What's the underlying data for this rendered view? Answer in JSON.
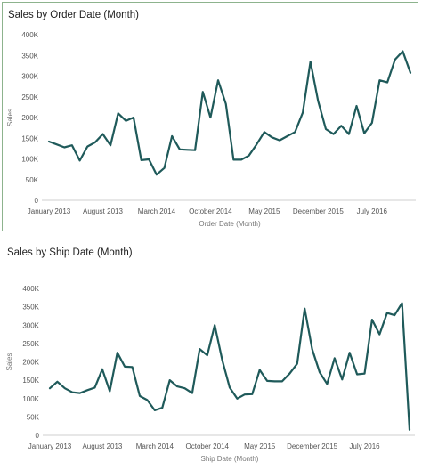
{
  "chart_data": [
    {
      "type": "line",
      "title": "Sales by Order Date (Month)",
      "xlabel": "Order Date (Month)",
      "ylabel": "Sales",
      "ylim": [
        0,
        400000
      ],
      "yticks": [
        "0",
        "50K",
        "100K",
        "150K",
        "200K",
        "250K",
        "300K",
        "350K",
        "400K"
      ],
      "xticks": [
        {
          "label": "January 2013",
          "index": 0
        },
        {
          "label": "August 2013",
          "index": 7
        },
        {
          "label": "March 2014",
          "index": 14
        },
        {
          "label": "October 2014",
          "index": 21
        },
        {
          "label": "May 2015",
          "index": 28
        },
        {
          "label": "December 2015",
          "index": 35
        },
        {
          "label": "July 2016",
          "index": 42
        }
      ],
      "grid": false,
      "color": "#1f5a5a",
      "x": [
        "Jan 2013",
        "Feb 2013",
        "Mar 2013",
        "Apr 2013",
        "May 2013",
        "Jun 2013",
        "Jul 2013",
        "Aug 2013",
        "Sep 2013",
        "Oct 2013",
        "Nov 2013",
        "Dec 2013",
        "Jan 2014",
        "Feb 2014",
        "Mar 2014",
        "Apr 2014",
        "May 2014",
        "Jun 2014",
        "Jul 2014",
        "Aug 2014",
        "Sep 2014",
        "Oct 2014",
        "Nov 2014",
        "Dec 2014",
        "Jan 2015",
        "Feb 2015",
        "Mar 2015",
        "Apr 2015",
        "May 2015",
        "Jun 2015",
        "Jul 2015",
        "Aug 2015",
        "Sep 2015",
        "Oct 2015",
        "Nov 2015",
        "Dec 2015",
        "Jan 2016",
        "Feb 2016",
        "Mar 2016",
        "Apr 2016",
        "May 2016",
        "Jun 2016",
        "Jul 2016",
        "Aug 2016",
        "Sep 2016",
        "Oct 2016",
        "Nov 2016",
        "Dec 2016"
      ],
      "values": [
        142000,
        135000,
        128000,
        133000,
        96000,
        130000,
        140000,
        160000,
        133000,
        210000,
        192000,
        200000,
        97000,
        99000,
        62000,
        78000,
        155000,
        123000,
        122000,
        121000,
        262000,
        200000,
        290000,
        233000,
        98000,
        98000,
        108000,
        135000,
        165000,
        152000,
        145000,
        155000,
        165000,
        212000,
        335000,
        240000,
        172000,
        160000,
        180000,
        160000,
        228000,
        162000,
        187000,
        290000,
        285000,
        340000,
        360000,
        308000
      ]
    },
    {
      "type": "line",
      "title": "Sales by Ship Date (Month)",
      "xlabel": "Ship Date (Month)",
      "ylabel": "Sales",
      "ylim": [
        0,
        400000
      ],
      "yticks": [
        "0",
        "50K",
        "100K",
        "150K",
        "200K",
        "250K",
        "300K",
        "350K",
        "400K"
      ],
      "xticks": [
        {
          "label": "January 2013",
          "index": 0
        },
        {
          "label": "August 2013",
          "index": 7
        },
        {
          "label": "March 2014",
          "index": 14
        },
        {
          "label": "October 2014",
          "index": 21
        },
        {
          "label": "May 2015",
          "index": 28
        },
        {
          "label": "December 2015",
          "index": 35
        },
        {
          "label": "July 2016",
          "index": 42
        }
      ],
      "grid": false,
      "color": "#1f5a5a",
      "x": [
        "Jan 2013",
        "Feb 2013",
        "Mar 2013",
        "Apr 2013",
        "May 2013",
        "Jun 2013",
        "Jul 2013",
        "Aug 2013",
        "Sep 2013",
        "Oct 2013",
        "Nov 2013",
        "Dec 2013",
        "Jan 2014",
        "Feb 2014",
        "Mar 2014",
        "Apr 2014",
        "May 2014",
        "Jun 2014",
        "Jul 2014",
        "Aug 2014",
        "Sep 2014",
        "Oct 2014",
        "Nov 2014",
        "Dec 2014",
        "Jan 2015",
        "Feb 2015",
        "Mar 2015",
        "Apr 2015",
        "May 2015",
        "Jun 2015",
        "Jul 2015",
        "Aug 2015",
        "Sep 2015",
        "Oct 2015",
        "Nov 2015",
        "Dec 2015",
        "Jan 2016",
        "Feb 2016",
        "Mar 2016",
        "Apr 2016",
        "May 2016",
        "Jun 2016",
        "Jul 2016",
        "Aug 2016",
        "Sep 2016",
        "Oct 2016",
        "Nov 2016",
        "Dec 2016",
        "Jan 2017"
      ],
      "values": [
        128000,
        146000,
        128000,
        117000,
        115000,
        123000,
        130000,
        180000,
        120000,
        225000,
        187000,
        186000,
        107000,
        96000,
        68000,
        75000,
        150000,
        133000,
        128000,
        115000,
        235000,
        218000,
        300000,
        205000,
        130000,
        100000,
        111000,
        112000,
        178000,
        148000,
        147000,
        147000,
        168000,
        195000,
        345000,
        235000,
        172000,
        140000,
        210000,
        152000,
        225000,
        166000,
        168000,
        315000,
        275000,
        333000,
        327000,
        360000,
        15000
      ]
    }
  ]
}
